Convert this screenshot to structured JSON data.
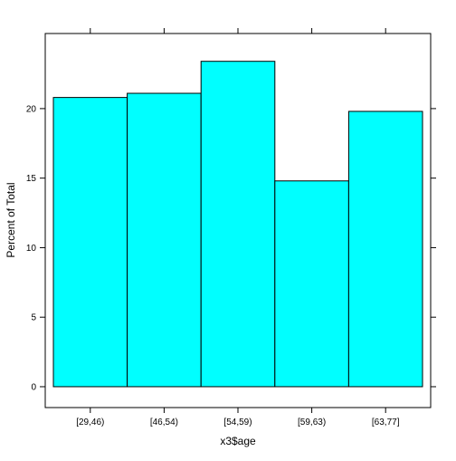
{
  "chart_data": {
    "type": "bar",
    "title": "",
    "xlabel": "x3$age",
    "ylabel": "Percent of Total",
    "categories": [
      "[29,46)",
      "[46,54)",
      "[54,59)",
      "[59,63)",
      "[63,77]"
    ],
    "values": [
      20.8,
      21.1,
      23.4,
      14.8,
      19.8
    ],
    "ylim": [
      -1.5,
      25.4
    ],
    "yticks": [
      0,
      5,
      10,
      15,
      20
    ],
    "ytick_labels": [
      "0",
      "5",
      "10",
      "15",
      "20"
    ],
    "bar_color": "#00ffff",
    "bar_edge_color": "#000000",
    "grid": false,
    "legend": "none"
  }
}
